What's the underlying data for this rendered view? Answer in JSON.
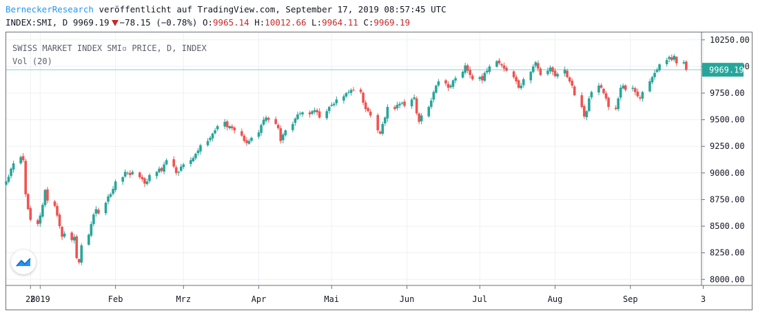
{
  "header": {
    "author": "BerneckerResearch",
    "published": "veröffentlicht auf TradingView.com, September 17, 2019 08:57:45 UTC",
    "symbol": "INDEX:SMI, D",
    "last": "9969.19",
    "change": "−78.15 (−0.78%)",
    "o_label": "O:",
    "o_value": "9965.14",
    "h_label": "H:",
    "h_value": "10012.66",
    "l_label": "L:",
    "l_value": "9964.11",
    "c_label": "C:",
    "c_value": "9969.19"
  },
  "legend": {
    "title": "SWISS MARKET INDEX SMI▫ PRICE, D, INDEX",
    "volume": "Vol (20)"
  },
  "logo_icon": "tradingview-logo-icon",
  "colors": {
    "up": "#26a69a",
    "down": "#ef5350",
    "price_line": "#26a69a",
    "grid": "#eef0f3"
  },
  "chart_data": {
    "type": "candlestick",
    "y_ticks": [
      "10250.00",
      "10000.00",
      "9750.00",
      "9500.00",
      "9250.00",
      "9000.00",
      "8750.00",
      "8500.00",
      "8250.00",
      "8000.00"
    ],
    "x_ticks": [
      "28",
      "2019",
      "Feb",
      "Mrz",
      "Apr",
      "Mai",
      "Jun",
      "Jul",
      "Aug",
      "Sep",
      "3"
    ],
    "last_price_label": "9969.19",
    "ylim": [
      7950,
      10320
    ],
    "last_price": 9969.19,
    "x_domain": [
      "2018-12-18",
      "2019-09-30"
    ],
    "x_tick_dates": [
      "2018-12-28",
      "2019-01-01",
      "2019-02-01",
      "2019-03-01",
      "2019-04-01",
      "2019-05-01",
      "2019-06-01",
      "2019-07-01",
      "2019-08-01",
      "2019-09-01",
      "2019-10-01"
    ],
    "closes": [
      8920,
      8965,
      9040,
      9090,
      9150,
      9120,
      8800,
      8660,
      8560,
      8520,
      8600,
      8700,
      8840,
      8740,
      8690,
      8600,
      8500,
      8400,
      8430,
      8370,
      8400,
      8200,
      8160,
      8320,
      8420,
      8520,
      8610,
      8660,
      8620,
      8720,
      8780,
      8800,
      8850,
      8920,
      8960,
      9010,
      9000,
      8980,
      9010,
      8960,
      8940,
      8900,
      8920,
      8980,
      9010,
      9040,
      9020,
      9080,
      9120,
      9060,
      9000,
      9010,
      9060,
      9080,
      9120,
      9140,
      9180,
      9210,
      9260,
      9300,
      9330,
      9370,
      9400,
      9440,
      9480,
      9430,
      9440,
      9420,
      9400,
      9350,
      9300,
      9280,
      9300,
      9330,
      9380,
      9450,
      9500,
      9520,
      9500,
      9460,
      9420,
      9300,
      9360,
      9400,
      9460,
      9510,
      9550,
      9560,
      9570,
      9550,
      9580,
      9590,
      9570,
      9520,
      9580,
      9620,
      9640,
      9650,
      9690,
      9720,
      9750,
      9760,
      9780,
      9775,
      9760,
      9660,
      9600,
      9580,
      9540,
      9400,
      9370,
      9460,
      9520,
      9620,
      9600,
      9640,
      9650,
      9660,
      9630,
      9690,
      9710,
      9560,
      9480,
      9540,
      9620,
      9680,
      9760,
      9820,
      9860,
      9840,
      9800,
      9820,
      9870,
      9890,
      9950,
      10010,
      9960,
      9920,
      9880,
      9900,
      9870,
      9940,
      9960,
      10000,
      10050,
      10030,
      10010,
      9980,
      9960,
      9900,
      9860,
      9800,
      9820,
      9880,
      9950,
      10000,
      10040,
      9980,
      9920,
      9960,
      9990,
      9950,
      9910,
      9930,
      9970,
      9900,
      9860,
      9820,
      9730,
      9620,
      9530,
      9580,
      9700,
      9760,
      9820,
      9800,
      9750,
      9700,
      9620,
      9600,
      9700,
      9800,
      9820,
      9780,
      9800,
      9760,
      9720,
      9700,
      9760,
      9860,
      9900,
      9940,
      9970,
      10020,
      10060,
      10090,
      10060,
      10100,
      10030,
      10040,
      9969.19
    ]
  }
}
